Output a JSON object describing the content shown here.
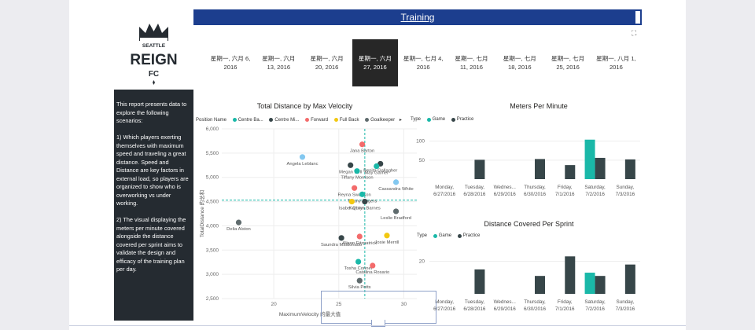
{
  "app": {
    "report_title": "Training",
    "logo_lines": [
      "SEATTLE",
      "REIGN",
      "FC"
    ],
    "description": "This report presents data to explore the following scenarios:\n\n1) Which players exerting themselves with maximum speed and traveling a great distance. Speed and Distance are key factors in external load, so players are organized to show who is overworking vs under working.\n\n2) The visual displaying the meters per minute covered alongside the distance covered per sprint aims to validate the design and efficacy of the training plan per day.",
    "colors": {
      "navy": "#1c3e8e",
      "sidebar": "#252b31",
      "teal": "#1ab8a8",
      "dark": "#374649",
      "red": "#f36b6b",
      "yellow": "#f2c811",
      "grey": "#5f6b6d",
      "lightblue": "#83c8f0"
    }
  },
  "date_slicer": {
    "selected_index": 3,
    "items": [
      {
        "line1": "星期一, 六月 6,",
        "line2": "2016"
      },
      {
        "line1": "星期一, 六月",
        "line2": "13, 2016"
      },
      {
        "line1": "星期一, 六月",
        "line2": "20, 2016"
      },
      {
        "line1": "星期一, 六月",
        "line2": "27, 2016"
      },
      {
        "line1": "星期一, 七月 4,",
        "line2": "2016"
      },
      {
        "line1": "星期一, 七月",
        "line2": "11, 2016"
      },
      {
        "line1": "星期一, 七月",
        "line2": "18, 2016"
      },
      {
        "line1": "星期一, 七月",
        "line2": "25, 2016"
      },
      {
        "line1": "星期一, 八月 1,",
        "line2": "2016"
      }
    ]
  },
  "chart_data": [
    {
      "type": "scatter",
      "title": "Total Distance by Max Velocity",
      "xlabel": "MaximumVelocity 的最大值",
      "ylabel": "TotalDistance 的总和",
      "xlim": [
        16,
        31
      ],
      "ylim": [
        2500,
        6000
      ],
      "x_ticks": [
        "20",
        "25",
        "30"
      ],
      "y_ticks": [
        "2,500",
        "3,000",
        "3,500",
        "4,000",
        "4,500",
        "5,000",
        "5,500",
        "6,000"
      ],
      "legend_title": "Position Name",
      "legend": [
        {
          "name": "Centre Ba...",
          "color": "#1ab8a8"
        },
        {
          "name": "Centre Mi...",
          "color": "#374649"
        },
        {
          "name": "Forward",
          "color": "#f36b6b"
        },
        {
          "name": "Full Back",
          "color": "#f2c811"
        },
        {
          "name": "Goalkeeper",
          "color": "#5f6b6d"
        }
      ],
      "ref_x": 27,
      "ref_y": 4530,
      "points": [
        {
          "label": "Jana Barton",
          "x": 26.8,
          "y": 5680,
          "color": "#f36b6b"
        },
        {
          "label": "Angela Leblanc",
          "x": 22.2,
          "y": 5420,
          "color": "#83c8f0"
        },
        {
          "label": "Benita Gallagher",
          "x": 28.2,
          "y": 5280,
          "color": "#374649"
        },
        {
          "label": "Megan Bell",
          "x": 25.9,
          "y": 5250,
          "color": "#374649"
        },
        {
          "label": "May Garner",
          "x": 27.9,
          "y": 5230,
          "color": "#1ab8a8"
        },
        {
          "label": "Tiffany Morrison",
          "x": 26.4,
          "y": 5130,
          "color": "#1ab8a8"
        },
        {
          "label": "Cassandra White",
          "x": 29.4,
          "y": 4900,
          "color": "#83c8f0"
        },
        {
          "label": "Reyna Swanson",
          "x": 26.2,
          "y": 4780,
          "color": "#f36b6b"
        },
        {
          "label": "Tiffany Rogers",
          "x": 26.8,
          "y": 4650,
          "color": "#1ab8a8"
        },
        {
          "label": "Isabel Quinn",
          "x": 26.0,
          "y": 4500,
          "color": "#f2c811"
        },
        {
          "label": "Kathryn Barnes",
          "x": 27.0,
          "y": 4500,
          "color": "#374649"
        },
        {
          "label": "Leslie Bradford",
          "x": 29.4,
          "y": 4300,
          "color": "#5f6b6d"
        },
        {
          "label": "Delia Alston",
          "x": 17.3,
          "y": 4070,
          "color": "#5f6b6d"
        },
        {
          "label": "Alison Fitzpatrick",
          "x": 26.6,
          "y": 3780,
          "color": "#f36b6b"
        },
        {
          "label": "Josie Merrill",
          "x": 28.7,
          "y": 3800,
          "color": "#f2c811"
        },
        {
          "label": "Saundra Maldonado",
          "x": 25.2,
          "y": 3750,
          "color": "#374649"
        },
        {
          "label": "Tosha Conner",
          "x": 26.5,
          "y": 3260,
          "color": "#1ab8a8"
        },
        {
          "label": "Catalina Rosario",
          "x": 27.6,
          "y": 3180,
          "color": "#f36b6b"
        },
        {
          "label": "Silvia Potts",
          "x": 26.6,
          "y": 2870,
          "color": "#5f6b6d"
        }
      ]
    },
    {
      "type": "bar",
      "title": "Meters Per Minute",
      "legend_title": "Type",
      "legend": [
        {
          "name": "Game",
          "color": "#1ab8a8"
        },
        {
          "name": "Practice",
          "color": "#374649"
        }
      ],
      "ylim": [
        0,
        120
      ],
      "y_ticks": [
        {
          "label": "100",
          "value": 100
        },
        {
          "label": "50",
          "value": 50
        }
      ],
      "categories": [
        {
          "l1": "Monday,",
          "l2": "6/27/2016"
        },
        {
          "l1": "Tuesday,",
          "l2": "6/28/2016"
        },
        {
          "l1": "Wednes...",
          "l2": "6/29/2016"
        },
        {
          "l1": "Thursday,",
          "l2": "6/30/2016"
        },
        {
          "l1": "Friday,",
          "l2": "7/1/2016"
        },
        {
          "l1": "Saturday,",
          "l2": "7/2/2016"
        },
        {
          "l1": "Sunday,",
          "l2": "7/3/2016"
        }
      ],
      "series": [
        {
          "name": "Game",
          "values": [
            null,
            null,
            null,
            null,
            null,
            104,
            null
          ]
        },
        {
          "name": "Practice",
          "values": [
            null,
            51,
            null,
            53,
            37,
            56,
            52
          ]
        }
      ]
    },
    {
      "type": "bar",
      "title": "Distance Covered Per Sprint",
      "legend_title": "Type",
      "legend": [
        {
          "name": "Game",
          "color": "#1ab8a8"
        },
        {
          "name": "Practice",
          "color": "#374649"
        }
      ],
      "ylim": [
        0,
        27
      ],
      "y_ticks": [
        {
          "label": "20",
          "value": 20
        }
      ],
      "categories": [
        {
          "l1": "Monday,",
          "l2": "6/27/2016"
        },
        {
          "l1": "Tuesday,",
          "l2": "6/28/2016"
        },
        {
          "l1": "Wednes...",
          "l2": "6/29/2016"
        },
        {
          "l1": "Thursday,",
          "l2": "6/30/2016"
        },
        {
          "l1": "Friday,",
          "l2": "7/1/2016"
        },
        {
          "l1": "Saturday,",
          "l2": "7/2/2016"
        },
        {
          "l1": "Sunday,",
          "l2": "7/3/2016"
        }
      ],
      "series": [
        {
          "name": "Game",
          "values": [
            null,
            null,
            null,
            null,
            null,
            13,
            null
          ]
        },
        {
          "name": "Practice",
          "values": [
            null,
            15,
            null,
            11,
            23,
            11,
            18
          ]
        }
      ]
    }
  ]
}
